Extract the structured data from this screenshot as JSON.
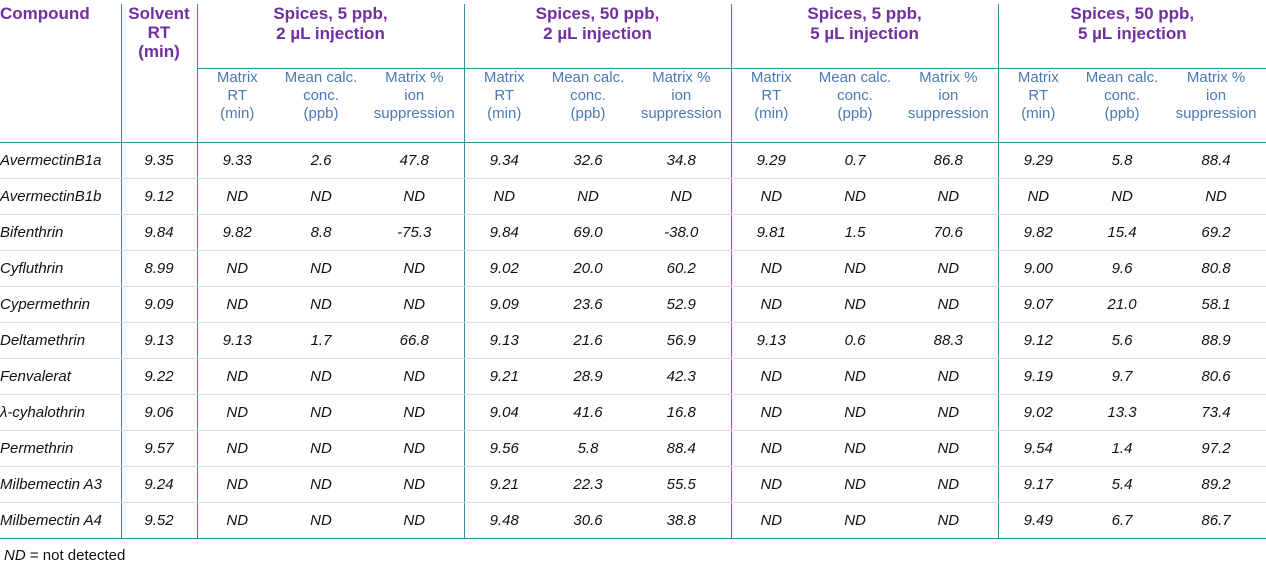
{
  "table": {
    "compound_header": "Compound",
    "rt_header": [
      "Solvent",
      "RT",
      "(min)"
    ],
    "groups": [
      {
        "line1": "Spices, 5 ppb,",
        "line2": "2 µL injection"
      },
      {
        "line1": "Spices, 50 ppb,",
        "line2": "2 µL injection"
      },
      {
        "line1": "Spices, 5 ppb,",
        "line2": "5 µL injection"
      },
      {
        "line1": "Spices, 50 ppb,",
        "line2": "5 µL injection"
      }
    ],
    "sub_headers": [
      [
        "Matrix",
        "RT",
        "(min)"
      ],
      [
        "Mean calc.",
        "conc.",
        "(ppb)"
      ],
      [
        "Matrix %",
        "ion",
        "suppression"
      ]
    ],
    "rows": [
      {
        "name": "AvermectinB1a",
        "rt": "9.35",
        "values": [
          "9.33",
          "2.6",
          "47.8",
          "9.34",
          "32.6",
          "34.8",
          "9.29",
          "0.7",
          "86.8",
          "9.29",
          "5.8",
          "88.4"
        ]
      },
      {
        "name": "AvermectinB1b",
        "rt": "9.12",
        "values": [
          "ND",
          "ND",
          "ND",
          "ND",
          "ND",
          "ND",
          "ND",
          "ND",
          "ND",
          "ND",
          "ND",
          "ND"
        ]
      },
      {
        "name": "Bifenthrin",
        "rt": "9.84",
        "values": [
          "9.82",
          "8.8",
          "-75.3",
          "9.84",
          "69.0",
          "-38.0",
          "9.81",
          "1.5",
          "70.6",
          "9.82",
          "15.4",
          "69.2"
        ]
      },
      {
        "name": "Cyfluthrin",
        "rt": "8.99",
        "values": [
          "ND",
          "ND",
          "ND",
          "9.02",
          "20.0",
          "60.2",
          "ND",
          "ND",
          "ND",
          "9.00",
          "9.6",
          "80.8"
        ]
      },
      {
        "name": "Cypermethrin",
        "rt": "9.09",
        "values": [
          "ND",
          "ND",
          "ND",
          "9.09",
          "23.6",
          "52.9",
          "ND",
          "ND",
          "ND",
          "9.07",
          "21.0",
          "58.1"
        ]
      },
      {
        "name": "Deltamethrin",
        "rt": "9.13",
        "values": [
          "9.13",
          "1.7",
          "66.8",
          "9.13",
          "21.6",
          "56.9",
          "9.13",
          "0.6",
          "88.3",
          "9.12",
          "5.6",
          "88.9"
        ]
      },
      {
        "name": "Fenvalerat",
        "rt": "9.22",
        "values": [
          "ND",
          "ND",
          "ND",
          "9.21",
          "28.9",
          "42.3",
          "ND",
          "ND",
          "ND",
          "9.19",
          "9.7",
          "80.6"
        ]
      },
      {
        "name": "λ-cyhalothrin",
        "rt": "9.06",
        "values": [
          "ND",
          "ND",
          "ND",
          "9.04",
          "41.6",
          "16.8",
          "ND",
          "ND",
          "ND",
          "9.02",
          "13.3",
          "73.4"
        ]
      },
      {
        "name": "Permethrin",
        "rt": "9.57",
        "values": [
          "ND",
          "ND",
          "ND",
          "9.56",
          "5.8",
          "88.4",
          "ND",
          "ND",
          "ND",
          "9.54",
          "1.4",
          "97.2"
        ]
      },
      {
        "name": "Milbemectin A3",
        "rt": "9.24",
        "values": [
          "ND",
          "ND",
          "ND",
          "9.21",
          "22.3",
          "55.5",
          "ND",
          "ND",
          "ND",
          "9.17",
          "5.4",
          "89.2"
        ]
      },
      {
        "name": "Milbemectin A4",
        "rt": "9.52",
        "values": [
          "ND",
          "ND",
          "ND",
          "9.48",
          "30.6",
          "38.8",
          "ND",
          "ND",
          "ND",
          "9.49",
          "6.7",
          "86.7"
        ]
      }
    ]
  },
  "footnote": {
    "abbr": "ND",
    "text": " = not detected"
  }
}
